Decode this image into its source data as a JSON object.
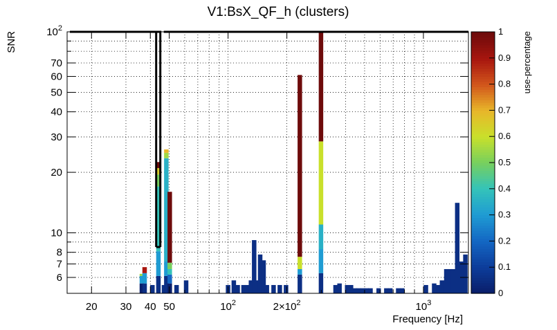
{
  "chart_data": {
    "type": "heatmap",
    "title": "V1:BsX_QF_h (clusters)",
    "xlabel": "Frequency [Hz]",
    "ylabel": "SNR",
    "colorbar_label": "use-percentage",
    "x_scale": "log",
    "y_scale": "log",
    "xlim": [
      15,
      1700
    ],
    "ylim": [
      5,
      100
    ],
    "grid": true,
    "x_ticks": [
      {
        "value": 20,
        "label": "20"
      },
      {
        "value": 30,
        "label": "30"
      },
      {
        "value": 40,
        "label": "40"
      },
      {
        "value": 50,
        "label": "50"
      },
      {
        "value": 100,
        "label": "10",
        "exp": "2"
      },
      {
        "value": 200,
        "label": "2×10",
        "exp": "2"
      },
      {
        "value": 1000,
        "label": "10",
        "exp": "3"
      }
    ],
    "y_ticks": [
      {
        "value": 6,
        "label": "6"
      },
      {
        "value": 7,
        "label": "7"
      },
      {
        "value": 8,
        "label": "8"
      },
      {
        "value": 10,
        "label": "10"
      },
      {
        "value": 20,
        "label": "20"
      },
      {
        "value": 30,
        "label": "30"
      },
      {
        "value": 40,
        "label": "40"
      },
      {
        "value": 50,
        "label": "50"
      },
      {
        "value": 60,
        "label": "60"
      },
      {
        "value": 70,
        "label": "70"
      },
      {
        "value": 100,
        "label": "10",
        "exp": "2"
      }
    ],
    "colorbar": {
      "range": [
        0,
        1
      ],
      "ticks": [
        "0",
        "0.1",
        "0.2",
        "0.3",
        "0.4",
        "0.5",
        "0.6",
        "0.7",
        "0.8",
        "0.9",
        "1"
      ],
      "palette": [
        "#0a1f6b",
        "#0d3e9c",
        "#1468c4",
        "#1f9cd3",
        "#34c3b9",
        "#77d05e",
        "#c9e02b",
        "#e8b72a",
        "#d2571c",
        "#a8160f",
        "#6e0b0b"
      ]
    },
    "highlight_box": {
      "x": [
        15.5,
        45
      ],
      "y": [
        8.5,
        100
      ],
      "color": "#000000"
    },
    "columns": [
      {
        "x": 36.2,
        "segments": [
          [
            5,
            5.6,
            0.0
          ],
          [
            5.6,
            6.1,
            0.3
          ],
          [
            6.1,
            6.25,
            0.55
          ]
        ]
      },
      {
        "x": 37.4,
        "segments": [
          [
            5,
            5.6,
            0.05
          ],
          [
            5.6,
            6.3,
            0.3
          ],
          [
            6.3,
            6.75,
            0.9
          ]
        ]
      },
      {
        "x": 41.0,
        "segments": [
          [
            5,
            5.5,
            0.05
          ]
        ]
      },
      {
        "x": 44.0,
        "segments": [
          [
            5,
            6.1,
            0.05
          ],
          [
            6.1,
            8.1,
            0.3
          ],
          [
            8.1,
            17,
            0.4
          ],
          [
            17,
            19.5,
            0.5
          ],
          [
            19.5,
            21,
            0.65
          ],
          [
            21,
            22.5,
            1.0
          ]
        ]
      },
      {
        "x": 47.0,
        "segments": [
          [
            5,
            5.5,
            0.05
          ]
        ]
      },
      {
        "x": 48.3,
        "segments": [
          [
            5,
            6.1,
            0.05
          ],
          [
            6.1,
            7.2,
            0.3
          ],
          [
            7.2,
            23.5,
            0.35
          ],
          [
            23.5,
            25,
            0.55
          ],
          [
            25,
            26,
            0.7
          ]
        ]
      },
      {
        "x": 50.3,
        "segments": [
          [
            5,
            5.6,
            0.0
          ],
          [
            5.6,
            6.2,
            0.2
          ],
          [
            6.2,
            6.6,
            0.4
          ],
          [
            6.6,
            7.1,
            0.5
          ],
          [
            7.1,
            16,
            1.0
          ]
        ]
      },
      {
        "x": 54.5,
        "segments": [
          [
            5,
            5.5,
            0.05
          ]
        ]
      },
      {
        "x": 61.0,
        "segments": [
          [
            5,
            5.8,
            0.05
          ]
        ]
      },
      {
        "x": 100.0,
        "segments": [
          [
            5,
            5.5,
            0.05
          ]
        ]
      },
      {
        "x": 107.0,
        "segments": [
          [
            5,
            5.8,
            0.05
          ]
        ]
      },
      {
        "x": 112.0,
        "segments": [
          [
            5,
            5.5,
            0.05
          ]
        ]
      },
      {
        "x": 120.0,
        "segments": [
          [
            5,
            5.5,
            0.05
          ]
        ]
      },
      {
        "x": 125.0,
        "segments": [
          [
            5,
            5.5,
            0.05
          ]
        ]
      },
      {
        "x": 131.0,
        "segments": [
          [
            5,
            5.8,
            0.05
          ]
        ]
      },
      {
        "x": 136.0,
        "segments": [
          [
            5,
            9.2,
            0.05
          ]
        ]
      },
      {
        "x": 141.0,
        "segments": [
          [
            5,
            5.8,
            0.05
          ]
        ]
      },
      {
        "x": 146.0,
        "segments": [
          [
            5,
            7.8,
            0.05
          ]
        ]
      },
      {
        "x": 152.0,
        "segments": [
          [
            5,
            7.3,
            0.05
          ]
        ]
      },
      {
        "x": 158.0,
        "segments": [
          [
            5,
            5.5,
            0.05
          ]
        ]
      },
      {
        "x": 171.0,
        "segments": [
          [
            5,
            5.5,
            0.05
          ]
        ]
      },
      {
        "x": 184.0,
        "segments": [
          [
            5,
            5.5,
            0.05
          ]
        ]
      },
      {
        "x": 198.0,
        "segments": [
          [
            5,
            5.5,
            0.05
          ]
        ]
      },
      {
        "x": 233.0,
        "segments": [
          [
            5,
            6.2,
            0.05
          ],
          [
            6.2,
            6.6,
            0.3
          ],
          [
            6.6,
            7.6,
            0.6
          ],
          [
            7.6,
            61,
            1.0
          ]
        ]
      },
      {
        "x": 299.0,
        "segments": [
          [
            5,
            6.3,
            0.05
          ],
          [
            6.3,
            8.3,
            0.3
          ],
          [
            8.3,
            11,
            0.35
          ],
          [
            11,
            28.5,
            0.6
          ],
          [
            28.5,
            100,
            1.0
          ]
        ]
      },
      {
        "x": 355.0,
        "segments": [
          [
            5,
            5.5,
            0.05
          ]
        ]
      },
      {
        "x": 372.0,
        "segments": [
          [
            5,
            5.6,
            0.05
          ]
        ]
      },
      {
        "x": 407.0,
        "segments": [
          [
            5,
            5.5,
            0.05
          ]
        ]
      },
      {
        "x": 426.0,
        "segments": [
          [
            5,
            5.5,
            0.05
          ]
        ]
      },
      {
        "x": 446.0,
        "segments": [
          [
            5,
            5.3,
            0.05
          ]
        ]
      },
      {
        "x": 467.0,
        "segments": [
          [
            5,
            5.3,
            0.05
          ]
        ]
      },
      {
        "x": 489.0,
        "segments": [
          [
            5,
            5.3,
            0.05
          ]
        ]
      },
      {
        "x": 512.0,
        "segments": [
          [
            5,
            5.3,
            0.05
          ]
        ]
      },
      {
        "x": 536.0,
        "segments": [
          [
            5,
            5.3,
            0.05
          ]
        ]
      },
      {
        "x": 590.0,
        "segments": [
          [
            5,
            5.3,
            0.05
          ]
        ]
      },
      {
        "x": 646.0,
        "segments": [
          [
            5,
            5.3,
            0.05
          ]
        ]
      },
      {
        "x": 677.0,
        "segments": [
          [
            5,
            5.3,
            0.05
          ]
        ]
      },
      {
        "x": 743.0,
        "segments": [
          [
            5,
            5.3,
            0.05
          ]
        ]
      },
      {
        "x": 779.0,
        "segments": [
          [
            5,
            5.3,
            0.05
          ]
        ]
      },
      {
        "x": 1030.0,
        "segments": [
          [
            5,
            5.5,
            0.05
          ]
        ]
      },
      {
        "x": 1135.0,
        "segments": [
          [
            5,
            5.6,
            0.05
          ]
        ]
      },
      {
        "x": 1190.0,
        "segments": [
          [
            5,
            5.5,
            0.05
          ]
        ]
      },
      {
        "x": 1245.0,
        "segments": [
          [
            5,
            5.8,
            0.05
          ]
        ]
      },
      {
        "x": 1310.0,
        "segments": [
          [
            5,
            6.6,
            0.05
          ]
        ]
      },
      {
        "x": 1370.0,
        "segments": [
          [
            5,
            6.6,
            0.05
          ]
        ]
      },
      {
        "x": 1420.0,
        "segments": [
          [
            5,
            6.6,
            0.05
          ]
        ]
      },
      {
        "x": 1490.0,
        "segments": [
          [
            5,
            14.1,
            0.05
          ]
        ]
      },
      {
        "x": 1560.0,
        "segments": [
          [
            5,
            7.2,
            0.05
          ]
        ]
      },
      {
        "x": 1640.0,
        "segments": [
          [
            5,
            7.8,
            0.05
          ]
        ]
      }
    ]
  }
}
